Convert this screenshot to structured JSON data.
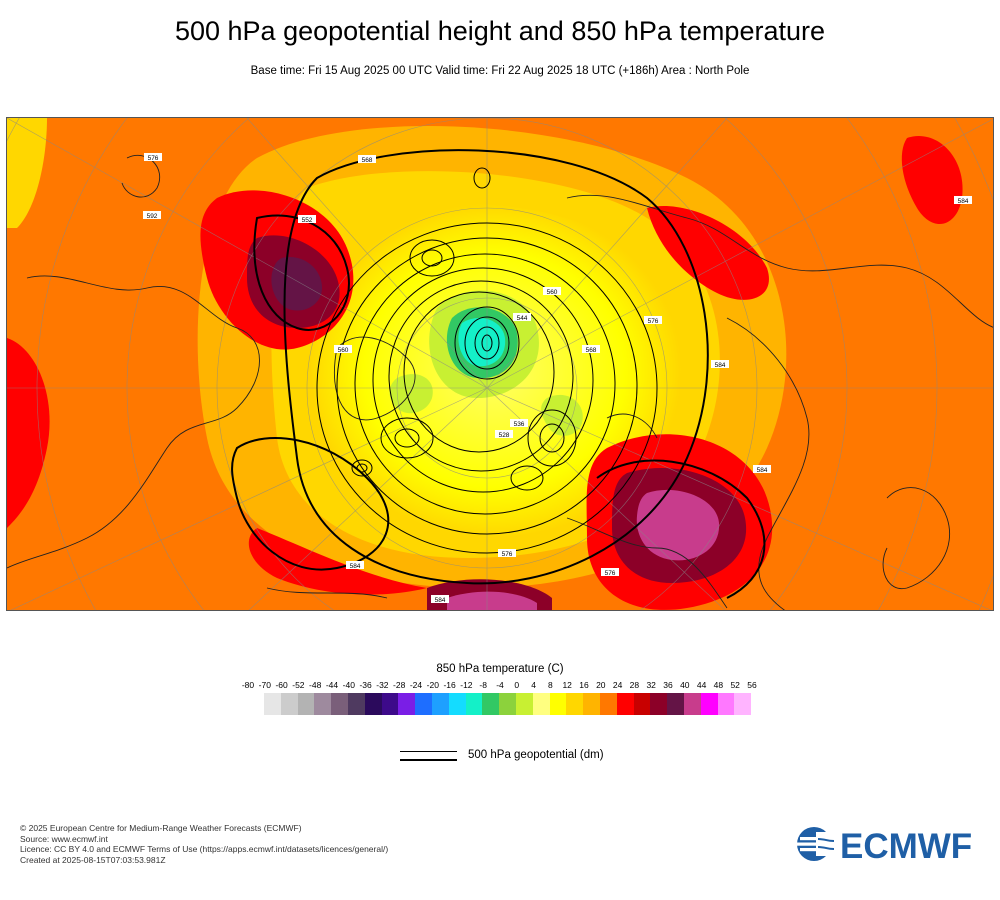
{
  "header": {
    "title": "500 hPa geopotential height and 850 hPa temperature",
    "subtitle": "Base time: Fri 15 Aug 2025 00 UTC Valid time: Fri 22 Aug 2025 18 UTC (+186h) Area : North Pole"
  },
  "map": {
    "contour_labels": [
      "552",
      "560",
      "584",
      "584",
      "576",
      "568",
      "544",
      "560",
      "528",
      "536",
      "576",
      "584",
      "576",
      "584",
      "592",
      "584",
      "576",
      "568"
    ]
  },
  "legend": {
    "title": "850 hPa temperature (C)",
    "ticks": [
      "-80",
      "-70",
      "-60",
      "-52",
      "-48",
      "-44",
      "-40",
      "-36",
      "-32",
      "-28",
      "-24",
      "-20",
      "-16",
      "-12",
      "-8",
      "-4",
      "0",
      "4",
      "8",
      "12",
      "16",
      "20",
      "24",
      "28",
      "32",
      "36",
      "40",
      "44",
      "48",
      "52",
      "56"
    ],
    "colors": [
      "#e6e6e6",
      "#cccccc",
      "#b3b3b3",
      "#9e8a9e",
      "#7a5f7a",
      "#4f3a60",
      "#2b0a5c",
      "#3d0a8a",
      "#7a1ee6",
      "#1e6eff",
      "#1ea0ff",
      "#14dcff",
      "#14f0c8",
      "#32c864",
      "#8cd23c",
      "#c8f032",
      "#ffff80",
      "#ffff00",
      "#ffd700",
      "#ffb400",
      "#ff7800",
      "#ff0000",
      "#c80000",
      "#8c0028",
      "#641446",
      "#c83c8c",
      "#ff00ff",
      "#ff78ff",
      "#ffb4ff",
      "#f0c8f0",
      "#e6e6e6"
    ],
    "geopotential_label": "500 hPa geopotential (dm)"
  },
  "footer": {
    "line1": "© 2025 European Centre for Medium-Range Weather Forecasts (ECMWF)",
    "line2": "Source: www.ecmwf.int",
    "line3": "Licence: CC BY 4.0 and ECMWF Terms of Use (https://apps.ecmwf.int/datasets/licences/general/)",
    "line4": "Created at 2025-08-15T07:03:53.981Z"
  },
  "logo": {
    "text": "ECMWF",
    "color": "#1f5fa6"
  }
}
